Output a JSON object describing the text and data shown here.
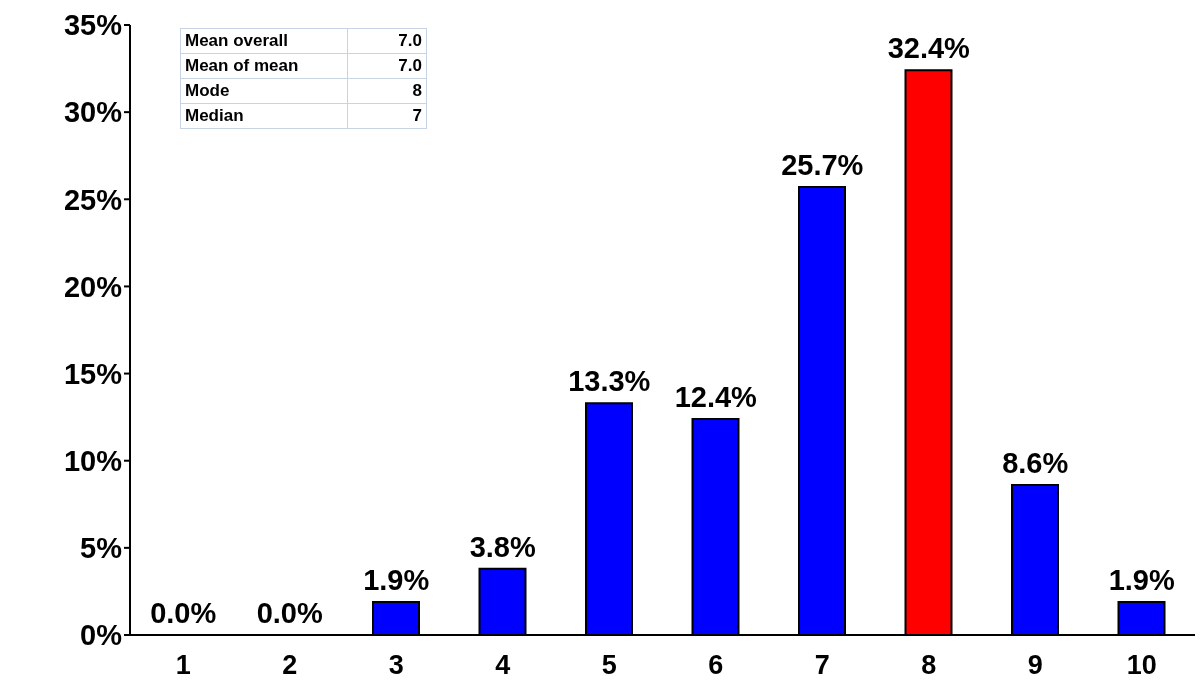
{
  "chart_data": {
    "type": "bar",
    "categories": [
      "1",
      "2",
      "3",
      "4",
      "5",
      "6",
      "7",
      "8",
      "9",
      "10"
    ],
    "values": [
      0,
      0,
      1.9,
      3.8,
      13.3,
      12.4,
      25.7,
      32.4,
      8.6,
      1.9
    ],
    "colors": [
      "#0000ff",
      "#0000ff",
      "#0000ff",
      "#0000ff",
      "#0000ff",
      "#0000ff",
      "#0000ff",
      "#ff0000",
      "#0000ff",
      "#0000ff"
    ],
    "value_labels": [
      "0.0%",
      "0.0%",
      "1.9%",
      "3.8%",
      "13.3%",
      "12.4%",
      "25.7%",
      "32.4%",
      "8.6%",
      "1.9%"
    ],
    "ylim": [
      0,
      35
    ],
    "yticks": [
      {
        "value": 0,
        "label": "0%"
      },
      {
        "value": 5,
        "label": "5%"
      },
      {
        "value": 10,
        "label": "10%"
      },
      {
        "value": 15,
        "label": "15%"
      },
      {
        "value": 20,
        "label": "20%"
      },
      {
        "value": 25,
        "label": "25%"
      },
      {
        "value": 30,
        "label": "30%"
      },
      {
        "value": 35,
        "label": "35%"
      }
    ],
    "grid": false,
    "legend": false,
    "annotations": [
      "Mean overall",
      "7.0",
      "Mean of mean",
      "7.0",
      "Mode",
      "8",
      "Median",
      "7"
    ]
  }
}
